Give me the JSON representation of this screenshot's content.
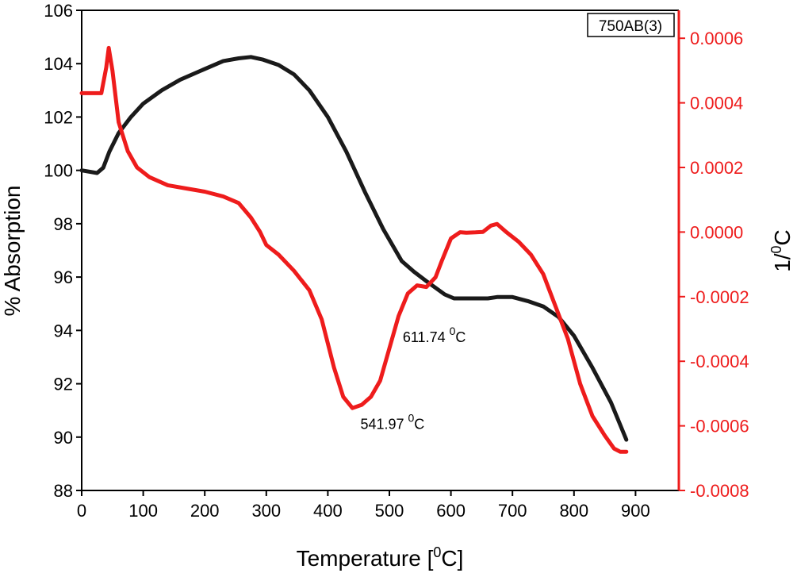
{
  "colors": {
    "black_series": "#1a1a1a",
    "red_series": "#ee1c1c",
    "axis_left": "#000000",
    "axis_right": "#ee1c1c"
  },
  "chart_data": {
    "type": "line",
    "title": "",
    "legend_label": "750AB(3)",
    "legend_position": "top-right",
    "xlabel": {
      "main": "Temperature [",
      "sup": "0",
      "tail": "C]"
    },
    "ylabel_left": "% Absorption",
    "ylabel_right": {
      "main": "1/",
      "sup": "0",
      "tail": "C"
    },
    "xlim": [
      0,
      940
    ],
    "ylim_left": [
      88,
      106
    ],
    "ylim_right": [
      -0.0008,
      0.00065
    ],
    "x_ticks": [
      0,
      100,
      200,
      300,
      400,
      500,
      600,
      700,
      800,
      900
    ],
    "x_tick_labels": [
      "0",
      "100",
      "200",
      "300",
      "400",
      "500",
      "600",
      "700",
      "800",
      "900"
    ],
    "y_left_ticks": [
      88,
      90,
      92,
      94,
      96,
      98,
      100,
      102,
      104,
      106
    ],
    "y_left_tick_labels": [
      "88",
      "90",
      "92",
      "94",
      "96",
      "98",
      "100",
      "102",
      "104",
      "106"
    ],
    "y_right_ticks": [
      -0.0008,
      -0.0006,
      -0.0004,
      -0.0002,
      0.0,
      0.0002,
      0.0004,
      0.0006
    ],
    "y_right_tick_labels": [
      "-0.0008",
      "-0.0006",
      "-0.0004",
      "-0.0002",
      "0.0000",
      "0.0002",
      "0.0004",
      "0.0006"
    ],
    "series": [
      {
        "name": "% Absorption",
        "axis": "left",
        "color": "#1a1a1a",
        "points": [
          [
            0,
            100
          ],
          [
            25,
            99.9
          ],
          [
            35,
            100.1
          ],
          [
            45,
            100.7
          ],
          [
            60,
            101.4
          ],
          [
            80,
            102.0
          ],
          [
            100,
            102.5
          ],
          [
            130,
            103.0
          ],
          [
            160,
            103.4
          ],
          [
            200,
            103.8
          ],
          [
            230,
            104.1
          ],
          [
            255,
            104.2
          ],
          [
            275,
            104.25
          ],
          [
            295,
            104.15
          ],
          [
            320,
            103.95
          ],
          [
            345,
            103.6
          ],
          [
            370,
            103.0
          ],
          [
            400,
            102.0
          ],
          [
            430,
            100.7
          ],
          [
            460,
            99.2
          ],
          [
            490,
            97.8
          ],
          [
            520,
            96.6
          ],
          [
            540,
            96.2
          ],
          [
            560,
            95.85
          ],
          [
            575,
            95.6
          ],
          [
            590,
            95.35
          ],
          [
            605,
            95.2
          ],
          [
            640,
            95.2
          ],
          [
            660,
            95.2
          ],
          [
            675,
            95.25
          ],
          [
            700,
            95.25
          ],
          [
            725,
            95.1
          ],
          [
            750,
            94.9
          ],
          [
            775,
            94.5
          ],
          [
            800,
            93.8
          ],
          [
            830,
            92.6
          ],
          [
            860,
            91.3
          ],
          [
            885,
            89.9
          ]
        ]
      },
      {
        "name": "1/0C",
        "axis": "right",
        "color": "#ee1c1c",
        "points": [
          [
            0,
            0.00043
          ],
          [
            32,
            0.00043
          ],
          [
            40,
            0.00051
          ],
          [
            44,
            0.00057
          ],
          [
            50,
            0.0005
          ],
          [
            60,
            0.00034
          ],
          [
            75,
            0.00025
          ],
          [
            90,
            0.0002
          ],
          [
            110,
            0.00017
          ],
          [
            140,
            0.000145
          ],
          [
            170,
            0.000135
          ],
          [
            200,
            0.000125
          ],
          [
            230,
            0.00011
          ],
          [
            255,
            9e-05
          ],
          [
            275,
            4.5e-05
          ],
          [
            290,
            0.0
          ],
          [
            300,
            -4e-05
          ],
          [
            320,
            -7e-05
          ],
          [
            345,
            -0.00012
          ],
          [
            370,
            -0.00018
          ],
          [
            390,
            -0.00027
          ],
          [
            410,
            -0.00042
          ],
          [
            425,
            -0.00051
          ],
          [
            440,
            -0.000545
          ],
          [
            455,
            -0.000535
          ],
          [
            470,
            -0.00051
          ],
          [
            485,
            -0.00046
          ],
          [
            500,
            -0.00036
          ],
          [
            515,
            -0.00026
          ],
          [
            530,
            -0.00019
          ],
          [
            545,
            -0.000165
          ],
          [
            560,
            -0.00017
          ],
          [
            575,
            -0.00014
          ],
          [
            585,
            -9e-05
          ],
          [
            600,
            -2e-05
          ],
          [
            615,
            -5e-07
          ],
          [
            625,
            -2e-06
          ],
          [
            640,
            -1e-06
          ],
          [
            652,
            5e-07
          ],
          [
            665,
            2e-05
          ],
          [
            675,
            2.5e-05
          ],
          [
            690,
            0.0
          ],
          [
            710,
            -3e-05
          ],
          [
            730,
            -7e-05
          ],
          [
            750,
            -0.00013
          ],
          [
            770,
            -0.00023
          ],
          [
            790,
            -0.00033
          ],
          [
            810,
            -0.00047
          ],
          [
            830,
            -0.00057
          ],
          [
            850,
            -0.00063
          ],
          [
            865,
            -0.00067
          ],
          [
            875,
            -0.00068
          ],
          [
            885,
            -0.00068
          ]
        ]
      }
    ],
    "annotations": [
      {
        "main": "541.97 ",
        "sup": "0",
        "tail": "C",
        "x": 505,
        "y_right": -0.00061
      },
      {
        "main": "611.74 ",
        "sup": "0",
        "tail": "C",
        "x": 573,
        "y_right": -0.00034
      }
    ]
  }
}
